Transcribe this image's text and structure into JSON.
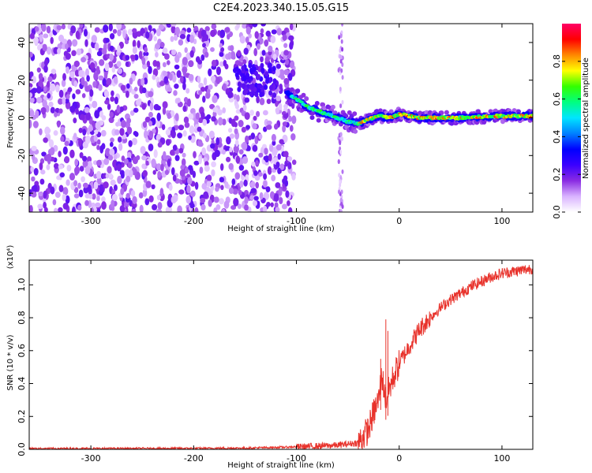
{
  "figure_title": "C2E4.2023.340.15.05.G15",
  "chart_data": [
    {
      "type": "heatmap",
      "xlabel": "Height of straight line (km)",
      "ylabel": "Frequency (Hz)",
      "xlim": [
        -360,
        130
      ],
      "ylim": [
        -50,
        50
      ],
      "xticks": [
        -300,
        -200,
        -100,
        0,
        100
      ],
      "yticks": [
        -40,
        -20,
        0,
        20,
        40
      ],
      "colorbar": {
        "label": "Normalized spectral amplitude",
        "range": [
          0,
          1
        ],
        "ticks": [
          0.0,
          0.2,
          0.4,
          0.6,
          0.8
        ],
        "colors": [
          "#ffffff",
          "#d9b3ff",
          "#8a2be2",
          "#3a00ff",
          "#0000ff",
          "#0080ff",
          "#00e5ff",
          "#00ff80",
          "#33ff00",
          "#ffff00",
          "#ff8800",
          "#ff0000",
          "#ff0066"
        ]
      },
      "features": {
        "noise_region_x": [
          -360,
          -102
        ],
        "gap_region_x": [
          -102,
          -55
        ],
        "narrow_band_x": -57,
        "signal_track": {
          "x": [
            -110,
            -100,
            -90,
            -80,
            -70,
            -60,
            -50,
            -40,
            -30,
            -20,
            -10,
            0,
            20,
            60,
            100,
            130
          ],
          "freq": [
            13,
            10,
            6,
            4,
            2,
            0,
            -2,
            -3,
            -1,
            1,
            0,
            2,
            0,
            0,
            1,
            1
          ]
        }
      },
      "grid": false,
      "legend": "none"
    },
    {
      "type": "line",
      "xlabel": "Height of straight line (km)",
      "ylabel": "SNR (10 * v/v)",
      "y_multiplier": "(x10⁴)",
      "xlim": [
        -360,
        130
      ],
      "ylim": [
        0,
        1.15
      ],
      "xticks": [
        -300,
        -200,
        -100,
        0,
        100
      ],
      "yticks": [
        0.0,
        0.2,
        0.4,
        0.6,
        0.8,
        1.0
      ],
      "series": [
        {
          "color": "#e8322b",
          "x": [
            -360,
            -300,
            -200,
            -150,
            -120,
            -100,
            -80,
            -60,
            -40,
            -30,
            -25,
            -20,
            -17,
            -15,
            -13,
            -10,
            -5,
            0,
            10,
            20,
            30,
            40,
            50,
            60,
            70,
            80,
            90,
            100,
            110,
            120,
            130
          ],
          "values": [
            0.005,
            0.005,
            0.006,
            0.008,
            0.012,
            0.015,
            0.02,
            0.025,
            0.04,
            0.12,
            0.22,
            0.3,
            0.45,
            0.38,
            0.3,
            0.36,
            0.45,
            0.52,
            0.63,
            0.73,
            0.8,
            0.86,
            0.91,
            0.95,
            0.99,
            1.02,
            1.05,
            1.07,
            1.08,
            1.09,
            1.1
          ]
        }
      ],
      "spikes": [
        {
          "x": -13,
          "y": 0.79
        },
        {
          "x": -11,
          "y": 0.72
        },
        {
          "x": -18,
          "y": 0.55
        }
      ],
      "grid": false,
      "legend": "none"
    }
  ]
}
